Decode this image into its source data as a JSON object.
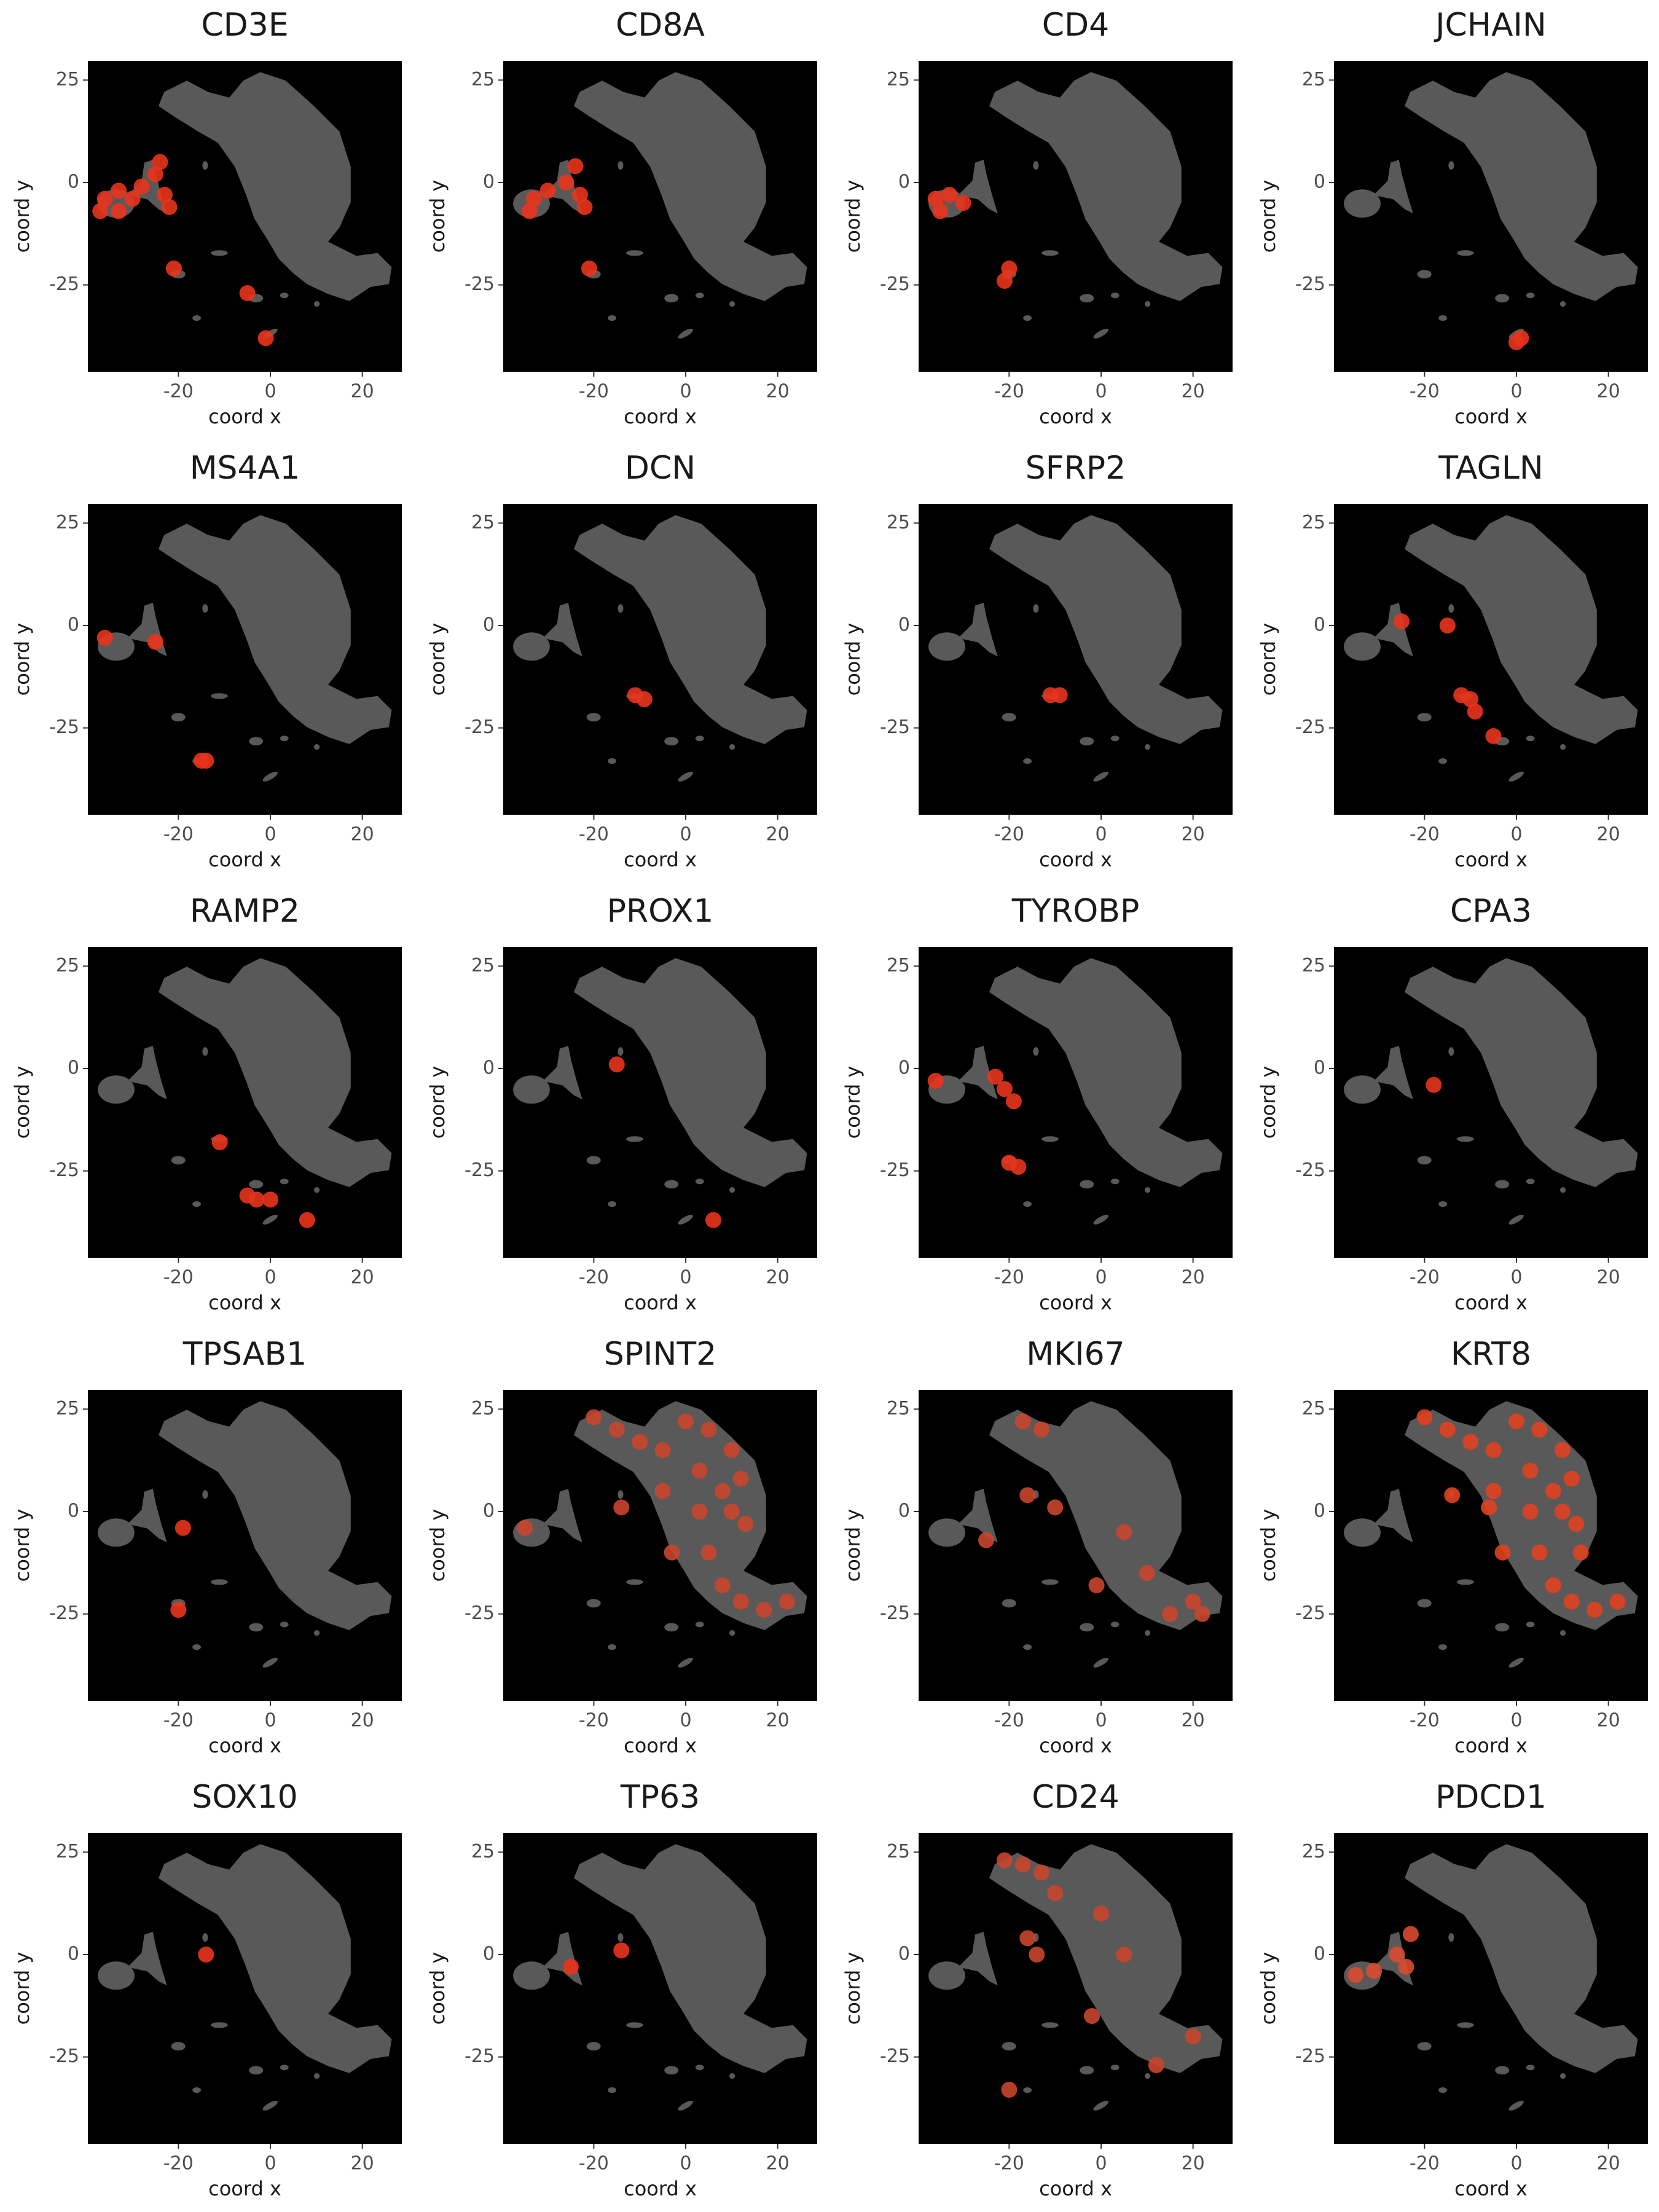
{
  "chart_data": [
    {
      "type": "scatter",
      "title": "CD3E",
      "xlabel": "coord x",
      "ylabel": "coord y",
      "color": "#e8341c",
      "x": [
        -36,
        -33,
        -33,
        -30,
        -37,
        -28,
        -25,
        -24,
        -23,
        -22,
        -21,
        -5,
        -1
      ],
      "y": [
        -4,
        -2,
        -7,
        -4,
        -7,
        -1,
        2,
        5,
        -3,
        -6,
        -21,
        -27,
        -38
      ],
      "xlim": [
        -39.7,
        28.6
      ],
      "ylim": [
        -46.2,
        29.7
      ],
      "xticks": [
        -20,
        0,
        20
      ],
      "yticks": [
        -25,
        0,
        25
      ]
    },
    {
      "type": "scatter",
      "title": "CD8A",
      "xlabel": "coord x",
      "ylabel": "coord y",
      "color": "#e8341c",
      "x": [
        -33,
        -30,
        -26,
        -24,
        -23,
        -22,
        -34,
        -21
      ],
      "y": [
        -4,
        -2,
        0,
        4,
        -3,
        -6,
        -7,
        -21
      ],
      "xlim": [
        -39.7,
        28.6
      ],
      "ylim": [
        -46.2,
        29.7
      ],
      "xticks": [
        -20,
        0,
        20
      ],
      "yticks": [
        -25,
        0,
        25
      ]
    },
    {
      "type": "scatter",
      "title": "CD4",
      "xlabel": "coord x",
      "ylabel": "coord y",
      "color": "#e8341c",
      "x": [
        -36,
        -33,
        -30,
        -35,
        -20,
        -21
      ],
      "y": [
        -4,
        -3,
        -5,
        -7,
        -21,
        -24
      ],
      "xlim": [
        -39.7,
        28.6
      ],
      "ylim": [
        -46.2,
        29.7
      ],
      "xticks": [
        -20,
        0,
        20
      ],
      "yticks": [
        -25,
        0,
        25
      ]
    },
    {
      "type": "scatter",
      "title": "JCHAIN",
      "xlabel": "coord x",
      "ylabel": "coord y",
      "color": "#e8341c",
      "x": [
        0,
        1
      ],
      "y": [
        -39,
        -38
      ],
      "xlim": [
        -39.7,
        28.6
      ],
      "ylim": [
        -46.2,
        29.7
      ],
      "xticks": [
        -20,
        0,
        20
      ],
      "yticks": [
        -25,
        0,
        25
      ]
    },
    {
      "type": "scatter",
      "title": "MS4A1",
      "xlabel": "coord x",
      "ylabel": "coord y",
      "color": "#e8341c",
      "x": [
        -36,
        -25,
        -15,
        -14
      ],
      "y": [
        -3,
        -4,
        -33,
        -33
      ],
      "xlim": [
        -39.7,
        28.6
      ],
      "ylim": [
        -46.2,
        29.7
      ],
      "xticks": [
        -20,
        0,
        20
      ],
      "yticks": [
        -25,
        0,
        25
      ]
    },
    {
      "type": "scatter",
      "title": "DCN",
      "xlabel": "coord x",
      "ylabel": "coord y",
      "color": "#e8341c",
      "x": [
        -11,
        -9
      ],
      "y": [
        -17,
        -18
      ],
      "xlim": [
        -39.7,
        28.6
      ],
      "ylim": [
        -46.2,
        29.7
      ],
      "xticks": [
        -20,
        0,
        20
      ],
      "yticks": [
        -25,
        0,
        25
      ]
    },
    {
      "type": "scatter",
      "title": "SFRP2",
      "xlabel": "coord x",
      "ylabel": "coord y",
      "color": "#e8341c",
      "x": [
        -11,
        -9
      ],
      "y": [
        -17,
        -17
      ],
      "xlim": [
        -39.7,
        28.6
      ],
      "ylim": [
        -46.2,
        29.7
      ],
      "xticks": [
        -20,
        0,
        20
      ],
      "yticks": [
        -25,
        0,
        25
      ]
    },
    {
      "type": "scatter",
      "title": "TAGLN",
      "xlabel": "coord x",
      "ylabel": "coord y",
      "color": "#e8341c",
      "x": [
        -12,
        -10,
        -9,
        -5,
        -25,
        -15
      ],
      "y": [
        -17,
        -18,
        -21,
        -27,
        1,
        0
      ],
      "xlim": [
        -39.7,
        28.6
      ],
      "ylim": [
        -46.2,
        29.7
      ],
      "xticks": [
        -20,
        0,
        20
      ],
      "yticks": [
        -25,
        0,
        25
      ]
    },
    {
      "type": "scatter",
      "title": "RAMP2",
      "xlabel": "coord x",
      "ylabel": "coord y",
      "color": "#e8341c",
      "x": [
        -5,
        -3,
        0,
        -11,
        8
      ],
      "y": [
        -31,
        -32,
        -32,
        -18,
        -37
      ],
      "xlim": [
        -39.7,
        28.6
      ],
      "ylim": [
        -46.2,
        29.7
      ],
      "xticks": [
        -20,
        0,
        20
      ],
      "yticks": [
        -25,
        0,
        25
      ]
    },
    {
      "type": "scatter",
      "title": "PROX1",
      "xlabel": "coord x",
      "ylabel": "coord y",
      "color": "#e8341c",
      "x": [
        -15,
        6
      ],
      "y": [
        1,
        -37
      ],
      "xlim": [
        -39.7,
        28.6
      ],
      "ylim": [
        -46.2,
        29.7
      ],
      "xticks": [
        -20,
        0,
        20
      ],
      "yticks": [
        -25,
        0,
        25
      ]
    },
    {
      "type": "scatter",
      "title": "TYROBP",
      "xlabel": "coord x",
      "ylabel": "coord y",
      "color": "#e8341c",
      "x": [
        -36,
        -23,
        -21,
        -19,
        -20,
        -18
      ],
      "y": [
        -3,
        -2,
        -5,
        -8,
        -23,
        -24
      ],
      "xlim": [
        -39.7,
        28.6
      ],
      "ylim": [
        -46.2,
        29.7
      ],
      "xticks": [
        -20,
        0,
        20
      ],
      "yticks": [
        -25,
        0,
        25
      ]
    },
    {
      "type": "scatter",
      "title": "CPA3",
      "xlabel": "coord x",
      "ylabel": "coord y",
      "color": "#e8341c",
      "x": [
        -18
      ],
      "y": [
        -4
      ],
      "xlim": [
        -39.7,
        28.6
      ],
      "ylim": [
        -46.2,
        29.7
      ],
      "xticks": [
        -20,
        0,
        20
      ],
      "yticks": [
        -25,
        0,
        25
      ]
    },
    {
      "type": "scatter",
      "title": "TPSAB1",
      "xlabel": "coord x",
      "ylabel": "coord y",
      "color": "#e8341c",
      "x": [
        -19,
        -20
      ],
      "y": [
        -4,
        -24
      ],
      "xlim": [
        -39.7,
        28.6
      ],
      "ylim": [
        -46.2,
        29.7
      ],
      "xticks": [
        -20,
        0,
        20
      ],
      "yticks": [
        -25,
        0,
        25
      ]
    },
    {
      "type": "scatter",
      "title": "SPINT2",
      "xlabel": "coord x",
      "ylabel": "coord y",
      "color": "#c8452c",
      "x": [
        -20,
        -15,
        -10,
        -5,
        0,
        5,
        10,
        12,
        8,
        3,
        10,
        13,
        5,
        8,
        12,
        17,
        22,
        -3,
        -5,
        3,
        -35,
        -14
      ],
      "y": [
        23,
        20,
        17,
        15,
        22,
        20,
        15,
        8,
        5,
        0,
        0,
        -3,
        -10,
        -18,
        -22,
        -24,
        -22,
        -10,
        5,
        10,
        -4,
        1
      ],
      "xlim": [
        -39.7,
        28.6
      ],
      "ylim": [
        -46.2,
        29.7
      ],
      "xticks": [
        -20,
        0,
        20
      ],
      "yticks": [
        -25,
        0,
        25
      ]
    },
    {
      "type": "scatter",
      "title": "MKI67",
      "xlabel": "coord x",
      "ylabel": "coord y",
      "color": "#c8452c",
      "x": [
        -17,
        -13,
        -16,
        -10,
        5,
        10,
        15,
        20,
        22,
        -25,
        -1
      ],
      "y": [
        22,
        20,
        4,
        1,
        -5,
        -15,
        -25,
        -22,
        -25,
        -7,
        -18
      ],
      "xlim": [
        -39.7,
        28.6
      ],
      "ylim": [
        -46.2,
        29.7
      ],
      "xticks": [
        -20,
        0,
        20
      ],
      "yticks": [
        -25,
        0,
        25
      ]
    },
    {
      "type": "scatter",
      "title": "KRT8",
      "xlabel": "coord x",
      "ylabel": "coord y",
      "color": "#e0401f",
      "x": [
        -20,
        -15,
        -10,
        -5,
        0,
        5,
        10,
        12,
        8,
        3,
        10,
        13,
        5,
        8,
        12,
        17,
        22,
        -3,
        -5,
        3,
        -14,
        -6,
        14
      ],
      "y": [
        23,
        20,
        17,
        15,
        22,
        20,
        15,
        8,
        5,
        0,
        0,
        -3,
        -10,
        -18,
        -22,
        -24,
        -22,
        -10,
        5,
        10,
        4,
        1,
        -10
      ],
      "xlim": [
        -39.7,
        28.6
      ],
      "ylim": [
        -46.2,
        29.7
      ],
      "xticks": [
        -20,
        0,
        20
      ],
      "yticks": [
        -25,
        0,
        25
      ]
    },
    {
      "type": "scatter",
      "title": "SOX10",
      "xlabel": "coord x",
      "ylabel": "coord y",
      "color": "#e8341c",
      "x": [
        -14
      ],
      "y": [
        0
      ],
      "xlim": [
        -39.7,
        28.6
      ],
      "ylim": [
        -46.2,
        29.7
      ],
      "xticks": [
        -20,
        0,
        20
      ],
      "yticks": [
        -25,
        0,
        25
      ]
    },
    {
      "type": "scatter",
      "title": "TP63",
      "xlabel": "coord x",
      "ylabel": "coord y",
      "color": "#e8341c",
      "x": [
        -25,
        -14
      ],
      "y": [
        -3,
        1
      ],
      "xlim": [
        -39.7,
        28.6
      ],
      "ylim": [
        -46.2,
        29.7
      ],
      "xticks": [
        -20,
        0,
        20
      ],
      "yticks": [
        -25,
        0,
        25
      ]
    },
    {
      "type": "scatter",
      "title": "CD24",
      "xlabel": "coord x",
      "ylabel": "coord y",
      "color": "#c8452c",
      "x": [
        -21,
        -17,
        -13,
        -10,
        0,
        5,
        -16,
        -14,
        -2,
        12,
        -20,
        20
      ],
      "y": [
        23,
        22,
        20,
        15,
        10,
        0,
        4,
        0,
        -15,
        -27,
        -33,
        -20
      ],
      "xlim": [
        -39.7,
        28.6
      ],
      "ylim": [
        -46.2,
        29.7
      ],
      "xticks": [
        -20,
        0,
        20
      ],
      "yticks": [
        -25,
        0,
        25
      ]
    },
    {
      "type": "scatter",
      "title": "PDCD1",
      "xlabel": "coord x",
      "ylabel": "coord y",
      "color": "#d84a30",
      "x": [
        -35,
        -31,
        -26,
        -23,
        -24
      ],
      "y": [
        -5,
        -4,
        0,
        5,
        -3
      ],
      "xlim": [
        -39.7,
        28.6
      ],
      "ylim": [
        -46.2,
        29.7
      ],
      "xticks": [
        -20,
        0,
        20
      ],
      "yticks": [
        -25,
        0,
        25
      ]
    }
  ]
}
